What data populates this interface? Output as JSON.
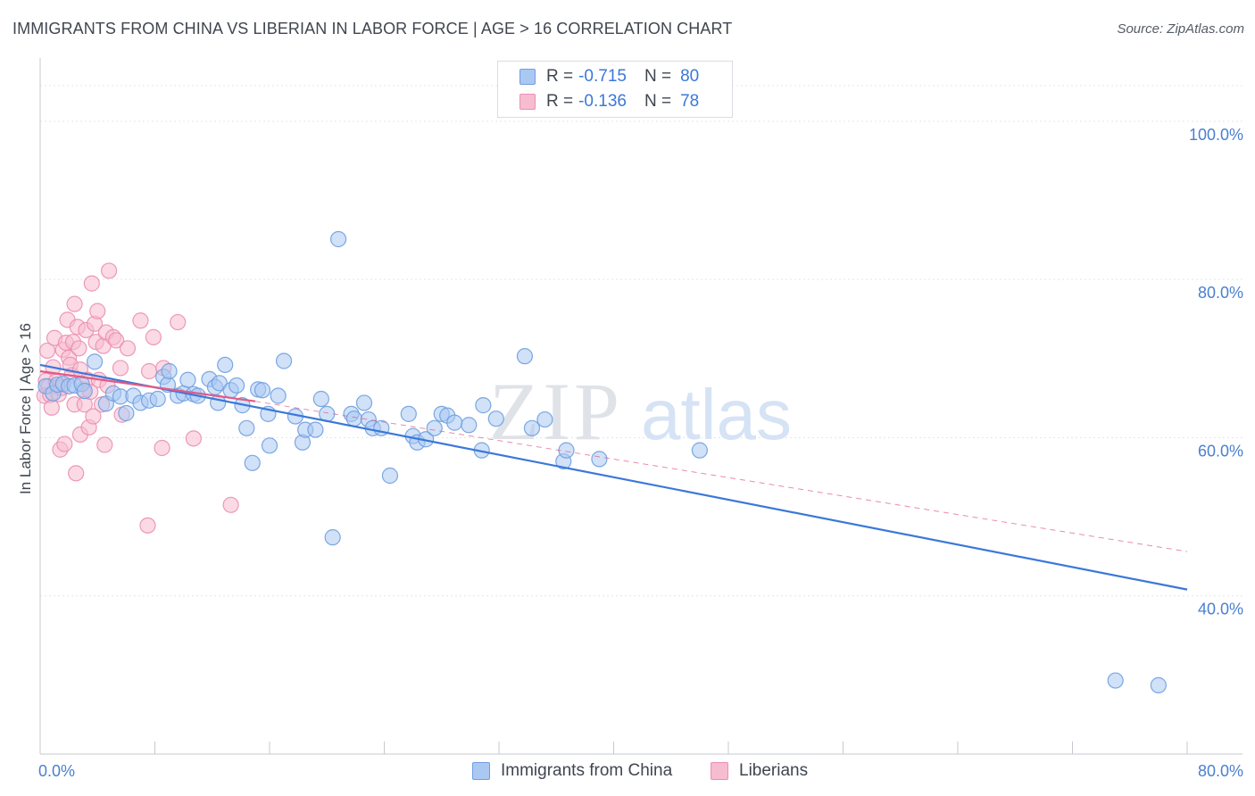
{
  "title": "IMMIGRANTS FROM CHINA VS LIBERIAN IN LABOR FORCE | AGE > 16 CORRELATION CHART",
  "source": "Source: ZipAtlas.com",
  "watermark": {
    "zip": "ZIP",
    "atlas": "atlas"
  },
  "legend": {
    "r_label": "R =",
    "n_label": "N =",
    "series": [
      {
        "r": "-0.715",
        "n": "80"
      },
      {
        "r": "-0.136",
        "n": "78"
      }
    ]
  },
  "colors": {
    "blue_fill": "#aac8f2",
    "blue_stroke": "#6e9fe0",
    "blue_line": "#3b78d8",
    "pink_fill": "#f7bcd0",
    "pink_stroke": "#ea8fb0",
    "pink_line": "#e05a86",
    "grid": "#e3e6ea",
    "tick_text": "#4a7fd0"
  },
  "chart_data": {
    "type": "scatter",
    "xlabel": "",
    "ylabel": "In Labor Force | Age > 16",
    "xlim": [
      0,
      80
    ],
    "ylim": [
      20,
      108
    ],
    "x_tick_labels": [
      "0.0%",
      "80.0%"
    ],
    "y_ticks": [
      {
        "value": 40,
        "label": "40.0%"
      },
      {
        "value": 60,
        "label": "60.0%"
      },
      {
        "value": 80,
        "label": "80.0%"
      },
      {
        "value": 100,
        "label": "100.0%"
      }
    ],
    "grid": true,
    "series": [
      {
        "name": "Immigrants from China",
        "color": "#aac8f2",
        "trend": {
          "x0": 0,
          "y0": 69.2,
          "x1": 80,
          "y1": 40.8,
          "style": "solid"
        },
        "points": [
          [
            0.4,
            66.5
          ],
          [
            0.9,
            65.6
          ],
          [
            1.2,
            66.7
          ],
          [
            1.6,
            66.8
          ],
          [
            2.0,
            66.5
          ],
          [
            2.4,
            66.6
          ],
          [
            2.9,
            66.8
          ],
          [
            3.1,
            65.9
          ],
          [
            3.8,
            69.6
          ],
          [
            4.6,
            64.3
          ],
          [
            5.1,
            65.6
          ],
          [
            5.6,
            65.2
          ],
          [
            6.0,
            63.1
          ],
          [
            6.5,
            65.3
          ],
          [
            7.0,
            64.4
          ],
          [
            7.6,
            64.7
          ],
          [
            8.2,
            64.9
          ],
          [
            8.6,
            67.7
          ],
          [
            8.9,
            66.7
          ],
          [
            9.0,
            68.4
          ],
          [
            9.6,
            65.3
          ],
          [
            10.0,
            65.6
          ],
          [
            10.3,
            67.3
          ],
          [
            10.7,
            65.5
          ],
          [
            11.0,
            65.3
          ],
          [
            11.8,
            67.4
          ],
          [
            12.2,
            66.4
          ],
          [
            12.4,
            64.4
          ],
          [
            12.5,
            66.9
          ],
          [
            12.9,
            69.2
          ],
          [
            13.3,
            66.0
          ],
          [
            13.7,
            66.6
          ],
          [
            14.1,
            64.1
          ],
          [
            14.4,
            61.2
          ],
          [
            14.8,
            56.8
          ],
          [
            15.2,
            66.1
          ],
          [
            15.5,
            66.0
          ],
          [
            15.9,
            63.0
          ],
          [
            16.0,
            59.0
          ],
          [
            16.6,
            65.3
          ],
          [
            17.0,
            69.7
          ],
          [
            17.8,
            62.7
          ],
          [
            18.3,
            59.4
          ],
          [
            18.5,
            61.0
          ],
          [
            19.2,
            61.0
          ],
          [
            19.6,
            64.9
          ],
          [
            20.0,
            63.0
          ],
          [
            20.4,
            47.4
          ],
          [
            20.8,
            85.1
          ],
          [
            21.7,
            63.0
          ],
          [
            21.9,
            62.4
          ],
          [
            22.6,
            64.4
          ],
          [
            22.9,
            62.3
          ],
          [
            23.2,
            61.2
          ],
          [
            23.8,
            61.2
          ],
          [
            24.4,
            55.2
          ],
          [
            25.7,
            63.0
          ],
          [
            26.0,
            60.2
          ],
          [
            26.3,
            59.4
          ],
          [
            26.9,
            59.8
          ],
          [
            27.5,
            61.2
          ],
          [
            28.0,
            63.0
          ],
          [
            28.4,
            62.8
          ],
          [
            28.9,
            61.9
          ],
          [
            29.9,
            61.6
          ],
          [
            30.9,
            64.1
          ],
          [
            30.8,
            58.4
          ],
          [
            31.8,
            62.4
          ],
          [
            33.8,
            70.3
          ],
          [
            34.3,
            61.2
          ],
          [
            35.2,
            62.3
          ],
          [
            36.5,
            57.0
          ],
          [
            36.7,
            58.4
          ],
          [
            39.0,
            57.3
          ],
          [
            46.0,
            58.4
          ],
          [
            75.0,
            29.3
          ],
          [
            78.0,
            28.7
          ]
        ]
      },
      {
        "name": "Liberians",
        "color": "#f7bcd0",
        "trend": {
          "x0": 0,
          "y0": 68.4,
          "x1": 15,
          "y1": 64.6,
          "style": "solid",
          "ext_x1": 80,
          "ext_y1": 45.6,
          "ext_style": "dashed"
        },
        "points": [
          [
            0.3,
            65.3
          ],
          [
            0.4,
            67.2
          ],
          [
            0.5,
            71.0
          ],
          [
            0.6,
            66.5
          ],
          [
            0.7,
            65.4
          ],
          [
            0.8,
            63.8
          ],
          [
            0.9,
            68.9
          ],
          [
            1.0,
            72.6
          ],
          [
            1.1,
            67.1
          ],
          [
            1.2,
            66.4
          ],
          [
            1.3,
            65.5
          ],
          [
            1.4,
            58.5
          ],
          [
            1.5,
            66.3
          ],
          [
            1.6,
            71.1
          ],
          [
            1.7,
            59.2
          ],
          [
            1.8,
            72.0
          ],
          [
            1.9,
            74.9
          ],
          [
            2.0,
            70.1
          ],
          [
            2.1,
            69.2
          ],
          [
            2.2,
            67.9
          ],
          [
            2.3,
            72.1
          ],
          [
            2.4,
            64.2
          ],
          [
            2.4,
            76.9
          ],
          [
            2.5,
            55.5
          ],
          [
            2.6,
            74.0
          ],
          [
            2.7,
            71.3
          ],
          [
            2.8,
            68.6
          ],
          [
            2.8,
            60.4
          ],
          [
            3.0,
            66.1
          ],
          [
            3.1,
            64.2
          ],
          [
            3.2,
            73.6
          ],
          [
            3.3,
            67.3
          ],
          [
            3.4,
            61.3
          ],
          [
            3.5,
            65.8
          ],
          [
            3.6,
            79.5
          ],
          [
            3.7,
            62.7
          ],
          [
            3.8,
            74.4
          ],
          [
            3.9,
            72.1
          ],
          [
            4.0,
            76.0
          ],
          [
            4.1,
            67.3
          ],
          [
            4.3,
            64.2
          ],
          [
            4.4,
            71.6
          ],
          [
            4.5,
            59.1
          ],
          [
            4.6,
            73.3
          ],
          [
            4.7,
            66.6
          ],
          [
            4.8,
            81.1
          ],
          [
            5.1,
            72.7
          ],
          [
            5.3,
            72.3
          ],
          [
            5.6,
            68.8
          ],
          [
            5.7,
            62.9
          ],
          [
            6.1,
            71.3
          ],
          [
            7.0,
            74.8
          ],
          [
            7.5,
            48.9
          ],
          [
            7.6,
            68.4
          ],
          [
            7.9,
            72.7
          ],
          [
            8.5,
            58.7
          ],
          [
            8.6,
            68.8
          ],
          [
            9.6,
            74.6
          ],
          [
            10.7,
            59.9
          ],
          [
            13.3,
            51.5
          ]
        ]
      }
    ]
  },
  "bottom_legend": [
    "Immigrants from China",
    "Liberians"
  ]
}
